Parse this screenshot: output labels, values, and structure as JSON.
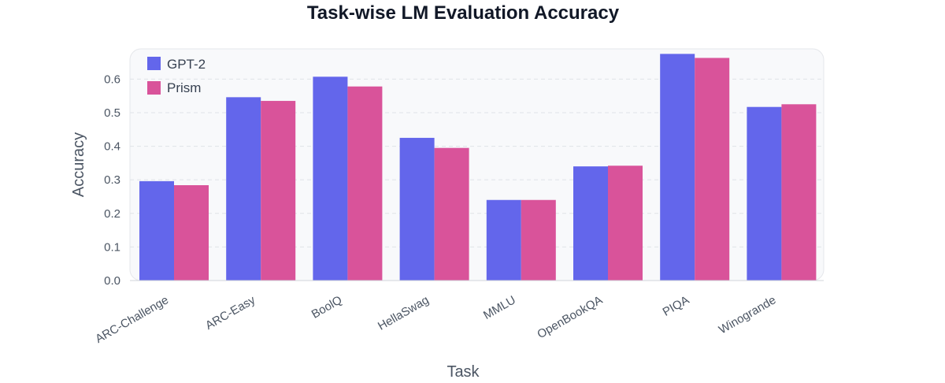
{
  "colors": {
    "gpt2": "#6366eb",
    "prism": "#d9539a",
    "plot_background": "#f8f9fb",
    "plot_border": "#e5e7eb",
    "grid": "#dfe3e8",
    "text": "#4b5563"
  },
  "chart_data": {
    "type": "bar",
    "title": "Task-wise LM Evaluation Accuracy",
    "xlabel": "Task",
    "ylabel": "Accuracy",
    "categories": [
      "ARC-Challenge",
      "ARC-Easy",
      "BoolQ",
      "HellaSwag",
      "MMLU",
      "OpenBookQA",
      "PIQA",
      "Winogrande"
    ],
    "series": [
      {
        "name": "GPT-2",
        "color_key": "gpt2",
        "values": [
          0.296,
          0.546,
          0.607,
          0.425,
          0.24,
          0.34,
          0.675,
          0.517
        ]
      },
      {
        "name": "Prism",
        "color_key": "prism",
        "values": [
          0.284,
          0.535,
          0.578,
          0.395,
          0.24,
          0.342,
          0.663,
          0.525
        ]
      }
    ],
    "ylim": [
      0,
      0.69
    ],
    "yticks": [
      "0.0",
      "0.1",
      "0.2",
      "0.3",
      "0.4",
      "0.5",
      "0.6"
    ],
    "grid": true,
    "legend_position": "top-left"
  }
}
